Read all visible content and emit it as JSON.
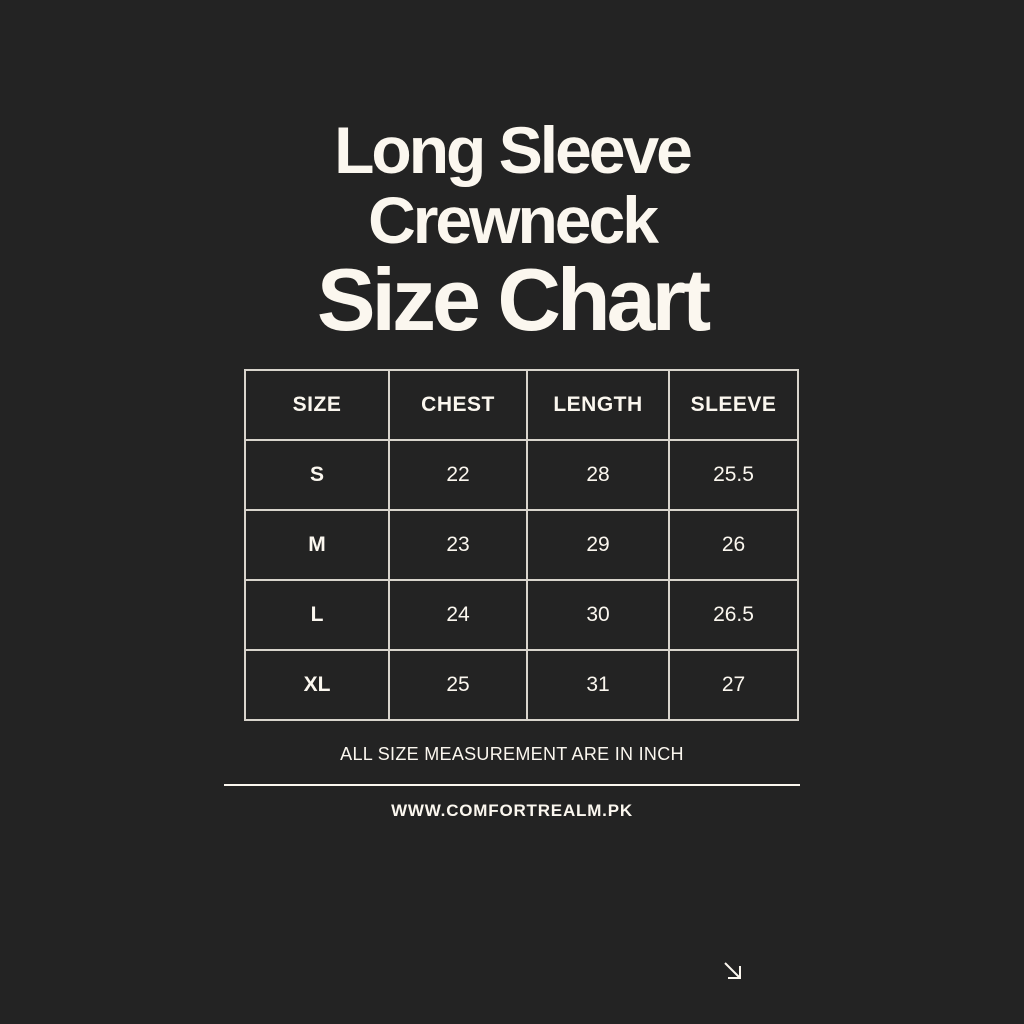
{
  "title": {
    "line1": "Long Sleeve",
    "line2": "Crewneck",
    "line3": "Size Chart"
  },
  "table": {
    "headers": [
      "SIZE",
      "CHEST",
      "LENGTH",
      "SLEEVE"
    ],
    "rows": [
      [
        "S",
        "22",
        "28",
        "25.5"
      ],
      [
        "M",
        "23",
        "29",
        "26"
      ],
      [
        "L",
        "24",
        "30",
        "26.5"
      ],
      [
        "XL",
        "25",
        "31",
        "27"
      ]
    ]
  },
  "note": "ALL SIZE MEASUREMENT ARE IN INCH",
  "website": "WWW.COMFORTREALM.PK",
  "icons": {
    "corner": "arrow-down-right-icon"
  },
  "colors": {
    "background": "#232323",
    "text": "#fbf7ef"
  }
}
